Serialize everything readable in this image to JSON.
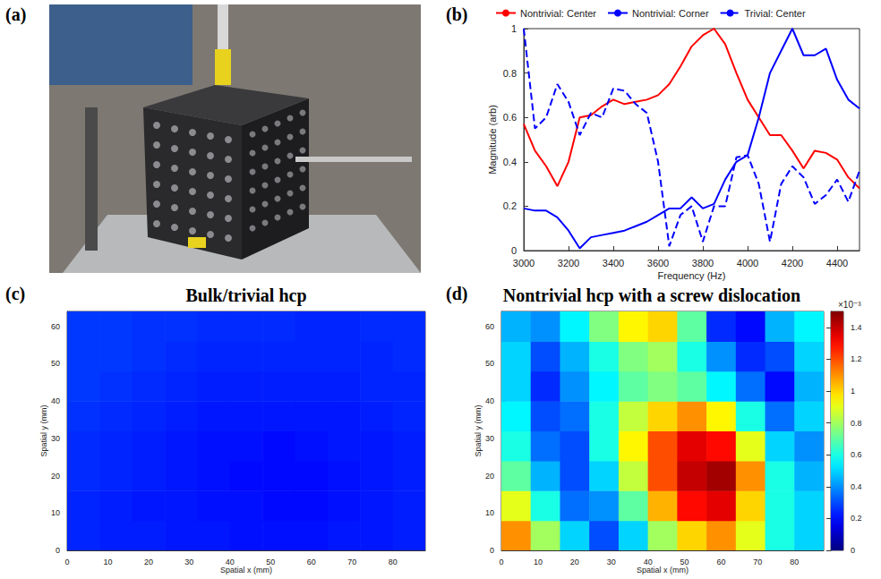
{
  "photo": {
    "panel_label": "(a)"
  },
  "chart_data": [
    {
      "panel_label": "(b)",
      "type": "line",
      "x_label": "Frequency (Hz)",
      "y_label": "Magnitude (arb)",
      "x": [
        3000,
        3050,
        3100,
        3150,
        3200,
        3250,
        3300,
        3350,
        3400,
        3450,
        3500,
        3550,
        3600,
        3650,
        3700,
        3750,
        3800,
        3850,
        3900,
        3950,
        4000,
        4050,
        4100,
        4150,
        4200,
        4250,
        4300,
        4350,
        4400,
        4450,
        4500
      ],
      "xlim": [
        3000,
        4500
      ],
      "xticks": [
        3000,
        3200,
        3400,
        3600,
        3800,
        4000,
        4200,
        4400
      ],
      "ylim": [
        0,
        1
      ],
      "yticks": [
        0,
        0.2,
        0.4,
        0.6,
        0.8,
        1
      ],
      "grid": false,
      "legend": "top",
      "series": [
        {
          "name": "Nontrivial: Center",
          "color": "#ff0000",
          "line_style": "solid",
          "values": [
            0.57,
            0.45,
            0.38,
            0.29,
            0.4,
            0.6,
            0.61,
            0.65,
            0.68,
            0.66,
            0.67,
            0.68,
            0.7,
            0.75,
            0.83,
            0.92,
            0.97,
            1.0,
            0.93,
            0.8,
            0.68,
            0.6,
            0.52,
            0.52,
            0.45,
            0.37,
            0.45,
            0.44,
            0.41,
            0.33,
            0.28
          ]
        },
        {
          "name": "Nontrivial: Corner",
          "color": "#0000ff",
          "line_style": "solid",
          "values": [
            0.19,
            0.18,
            0.18,
            0.15,
            0.09,
            0.01,
            0.06,
            0.07,
            0.08,
            0.09,
            0.11,
            0.13,
            0.16,
            0.19,
            0.19,
            0.24,
            0.19,
            0.21,
            0.32,
            0.4,
            0.43,
            0.6,
            0.8,
            0.9,
            1.0,
            0.88,
            0.88,
            0.91,
            0.77,
            0.68,
            0.64
          ]
        },
        {
          "name": "Trivial: Center",
          "color": "#0000ff",
          "line_style": "dashed",
          "values": [
            1.0,
            0.55,
            0.6,
            0.75,
            0.67,
            0.52,
            0.62,
            0.6,
            0.73,
            0.72,
            0.66,
            0.62,
            0.4,
            0.02,
            0.16,
            0.2,
            0.04,
            0.2,
            0.2,
            0.42,
            0.43,
            0.3,
            0.04,
            0.3,
            0.38,
            0.33,
            0.21,
            0.25,
            0.32,
            0.22,
            0.36
          ]
        }
      ]
    },
    {
      "panel_label": "(c)",
      "type": "heatmap",
      "title": "Bulk/trivial hcp",
      "x_label": "Spatial x (mm)",
      "y_label": "Spatial y (mm)",
      "xlim": [
        0,
        88
      ],
      "xticks": [
        0,
        10,
        20,
        30,
        40,
        50,
        60,
        70,
        80
      ],
      "ylim": [
        0,
        64
      ],
      "yticks": [
        0,
        10,
        20,
        30,
        40,
        50,
        60
      ],
      "x_edges": [
        0,
        8,
        16,
        24,
        32,
        40,
        48,
        56,
        64,
        72,
        80,
        88
      ],
      "y_edges": [
        0,
        8,
        16,
        24,
        32,
        40,
        48,
        56,
        64
      ],
      "zlim": [
        0,
        1.5
      ],
      "cells": [
        [
          0.24,
          0.23,
          0.23,
          0.22,
          0.22,
          0.21,
          0.21,
          0.21,
          0.22,
          0.22,
          0.23
        ],
        [
          0.24,
          0.23,
          0.22,
          0.22,
          0.21,
          0.21,
          0.2,
          0.2,
          0.21,
          0.22,
          0.23
        ],
        [
          0.25,
          0.24,
          0.23,
          0.22,
          0.21,
          0.2,
          0.2,
          0.2,
          0.21,
          0.22,
          0.23
        ],
        [
          0.25,
          0.24,
          0.23,
          0.22,
          0.21,
          0.21,
          0.2,
          0.21,
          0.22,
          0.22,
          0.23
        ],
        [
          0.26,
          0.25,
          0.24,
          0.23,
          0.22,
          0.22,
          0.22,
          0.22,
          0.22,
          0.23,
          0.24
        ],
        [
          0.27,
          0.26,
          0.25,
          0.24,
          0.23,
          0.23,
          0.23,
          0.23,
          0.23,
          0.24,
          0.24
        ],
        [
          0.27,
          0.27,
          0.26,
          0.25,
          0.24,
          0.24,
          0.24,
          0.24,
          0.24,
          0.24,
          0.25
        ],
        [
          0.27,
          0.27,
          0.26,
          0.26,
          0.25,
          0.25,
          0.25,
          0.24,
          0.24,
          0.25,
          0.25
        ]
      ]
    },
    {
      "panel_label": "(d)",
      "type": "heatmap",
      "title": "Nontrivial hcp with a screw dislocation",
      "x_label": "Spatial x (mm)",
      "y_label": "Spatial y (mm)",
      "xlim": [
        0,
        88
      ],
      "xticks": [
        0,
        10,
        20,
        30,
        40,
        50,
        60,
        70,
        80
      ],
      "ylim": [
        0,
        64
      ],
      "yticks": [
        0,
        10,
        20,
        30,
        40,
        50,
        60
      ],
      "x_edges": [
        0,
        8,
        16,
        24,
        32,
        40,
        48,
        56,
        64,
        72,
        80,
        88
      ],
      "y_edges": [
        0,
        8,
        16,
        24,
        32,
        40,
        48,
        56,
        64
      ],
      "zlim": [
        0,
        1.5
      ],
      "zticks": [
        0,
        0.2,
        0.4,
        0.6,
        0.8,
        1,
        1.2,
        1.4
      ],
      "z_label": "×10⁻³",
      "cells": [
        [
          1.1,
          0.8,
          0.5,
          0.3,
          0.5,
          0.8,
          1.0,
          1.1,
          0.9,
          0.6,
          0.5
        ],
        [
          0.9,
          0.6,
          0.35,
          0.4,
          0.7,
          1.05,
          1.3,
          1.35,
          1.0,
          0.6,
          0.5
        ],
        [
          0.7,
          0.45,
          0.3,
          0.5,
          0.85,
          1.2,
          1.4,
          1.45,
          1.1,
          0.6,
          0.45
        ],
        [
          0.6,
          0.35,
          0.3,
          0.6,
          0.95,
          1.2,
          1.35,
          1.3,
          0.9,
          0.5,
          0.4
        ],
        [
          0.55,
          0.3,
          0.35,
          0.6,
          0.85,
          1.0,
          1.1,
          0.95,
          0.6,
          0.35,
          0.5
        ],
        [
          0.5,
          0.25,
          0.4,
          0.55,
          0.7,
          0.75,
          0.7,
          0.55,
          0.35,
          0.2,
          0.45
        ],
        [
          0.5,
          0.3,
          0.45,
          0.6,
          0.75,
          0.8,
          0.6,
          0.4,
          0.25,
          0.3,
          0.5
        ],
        [
          0.45,
          0.4,
          0.55,
          0.75,
          0.95,
          1.0,
          0.7,
          0.25,
          0.2,
          0.45,
          0.55
        ]
      ]
    }
  ]
}
